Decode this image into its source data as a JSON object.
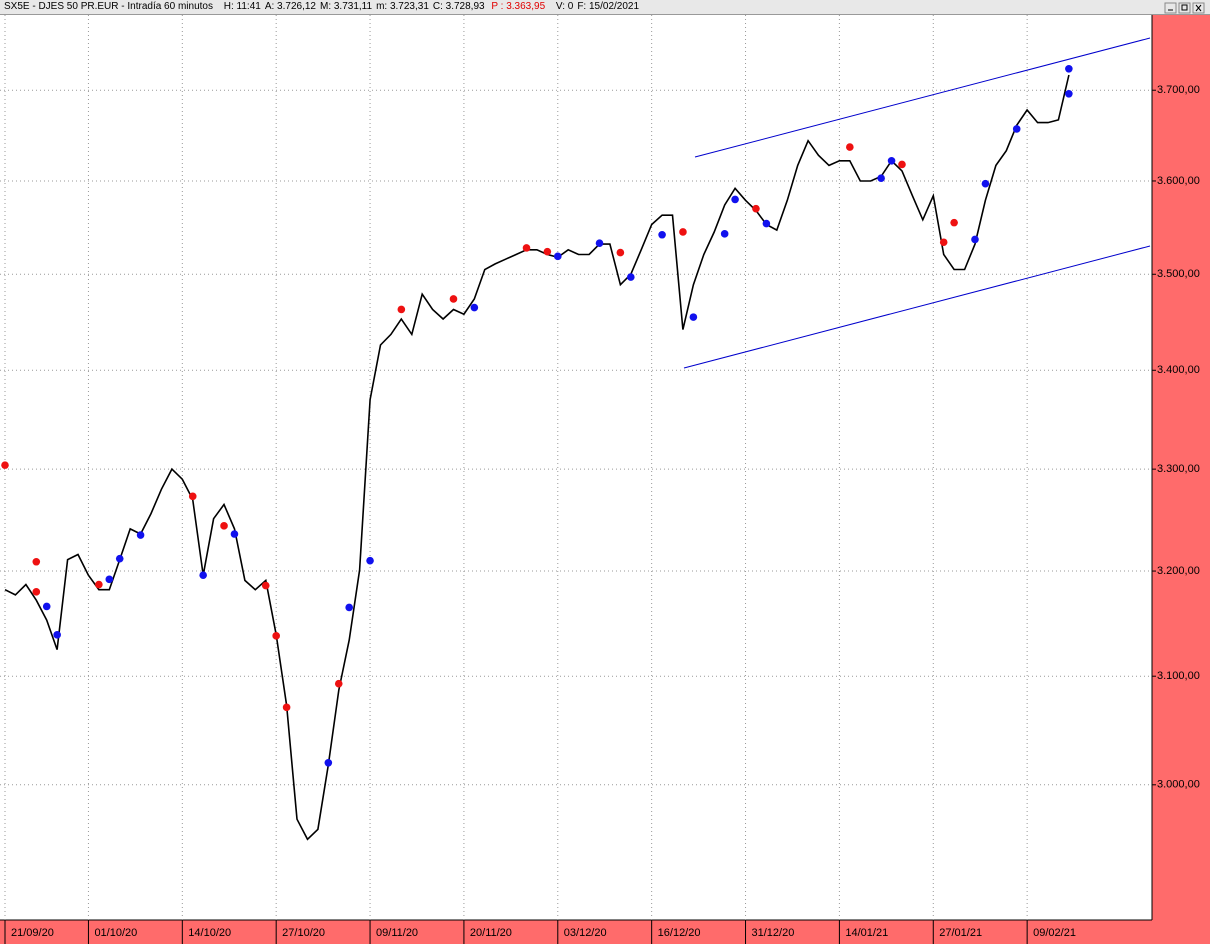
{
  "title_bar": {
    "title": "SX5E - DJES 50 PR.EUR - Intradía 60 minutos",
    "fields": [
      "H: 11:41",
      "A: 3.726,12",
      "M: 3.731,11",
      "m: 3.723,31",
      "C: 3.728,93"
    ],
    "highlight": "P : 3.363,95",
    "tail_fields": [
      "V: 0",
      "F: 15/02/2021"
    ]
  },
  "chart_data": {
    "type": "line",
    "log_scale": true,
    "grid": true,
    "x": [
      "21/09/20",
      "22/09/20",
      "23/09/20",
      "24/09/20",
      "25/09/20",
      "28/09/20",
      "29/09/20",
      "30/09/20",
      "01/10/20",
      "02/10/20",
      "05/10/20",
      "06/10/20",
      "07/10/20",
      "08/10/20",
      "09/10/20",
      "12/10/20",
      "13/10/20",
      "14/10/20",
      "15/10/20",
      "16/10/20",
      "19/10/20",
      "20/10/20",
      "21/10/20",
      "22/10/20",
      "23/10/20",
      "26/10/20",
      "27/10/20",
      "28/10/20",
      "29/10/20",
      "30/10/20",
      "02/11/20",
      "03/11/20",
      "04/11/20",
      "05/11/20",
      "06/11/20",
      "09/11/20",
      "10/11/20",
      "11/11/20",
      "12/11/20",
      "13/11/20",
      "16/11/20",
      "17/11/20",
      "18/11/20",
      "19/11/20",
      "20/11/20",
      "23/11/20",
      "24/11/20",
      "25/11/20",
      "26/11/20",
      "27/11/20",
      "30/11/20",
      "01/12/20",
      "02/12/20",
      "03/12/20",
      "04/12/20",
      "07/12/20",
      "08/12/20",
      "09/12/20",
      "10/12/20",
      "11/12/20",
      "14/12/20",
      "15/12/20",
      "16/12/20",
      "17/12/20",
      "18/12/20",
      "21/12/20",
      "22/12/20",
      "23/12/20",
      "28/12/20",
      "29/12/20",
      "30/12/20",
      "31/12/20",
      "04/01/21",
      "05/01/21",
      "06/01/21",
      "07/01/21",
      "08/01/21",
      "11/01/21",
      "12/01/21",
      "13/01/21",
      "14/01/21",
      "15/01/21",
      "18/01/21",
      "19/01/21",
      "20/01/21",
      "21/01/21",
      "22/01/21",
      "25/01/21",
      "26/01/21",
      "27/01/21",
      "28/01/21",
      "29/01/21",
      "01/02/21",
      "02/02/21",
      "03/02/21",
      "04/02/21",
      "05/02/21",
      "08/02/21",
      "09/02/21",
      "10/02/21",
      "11/02/21",
      "12/02/21",
      "15/02/21"
    ],
    "series": [
      {
        "color": "#000000",
        "values": [
          3182,
          3177,
          3187,
          3172,
          3153,
          3125,
          3211,
          3216,
          3196,
          3182,
          3182,
          3211,
          3241,
          3236,
          3256,
          3280,
          3300,
          3290,
          3270,
          3196,
          3251,
          3265,
          3241,
          3191,
          3182,
          3191,
          3139,
          3073,
          2969,
          2951,
          2960,
          3018,
          3087,
          3134,
          3201,
          3370,
          3426,
          3437,
          3453,
          3437,
          3479,
          3463,
          3453,
          3463,
          3458,
          3474,
          3505,
          3511,
          3516,
          3521,
          3526,
          3526,
          3521,
          3518,
          3526,
          3521,
          3521,
          3532,
          3532,
          3489,
          3500,
          3526,
          3553,
          3563,
          3563,
          3442,
          3489,
          3521,
          3545,
          3574,
          3592,
          3579,
          3568,
          3553,
          3547,
          3579,
          3617,
          3644,
          3628,
          3617,
          3622,
          3622,
          3600,
          3600,
          3605,
          3622,
          3611,
          3584,
          3558,
          3584,
          3521,
          3505,
          3505,
          3532,
          3579,
          3617,
          3633,
          3661,
          3678,
          3664,
          3664,
          3667,
          3717
        ]
      }
    ],
    "markers": [
      {
        "color": "#ee1111",
        "x": [
          "21/09/20",
          "24/09/20",
          "24/09/20",
          "02/10/20",
          "15/10/20",
          "20/10/20",
          "26/10/20",
          "27/10/20",
          "28/10/20",
          "04/11/20",
          "12/11/20",
          "19/11/20",
          "30/11/20",
          "02/12/20",
          "11/12/20",
          "21/12/20",
          "04/01/21",
          "15/01/21",
          "22/01/21",
          "28/01/21",
          "29/01/21"
        ],
        "values": [
          3304,
          3209,
          3180,
          3187,
          3273,
          3244,
          3186,
          3138,
          3071,
          3093,
          3463,
          3474,
          3528,
          3524,
          3523,
          3545,
          3570,
          3637,
          3618,
          3534,
          3555
        ]
      },
      {
        "color": "#1111ee",
        "x": [
          "25/09/20",
          "28/09/20",
          "05/10/20",
          "06/10/20",
          "08/10/20",
          "16/10/20",
          "21/10/20",
          "03/11/20",
          "05/11/20",
          "09/11/20",
          "23/11/20",
          "03/12/20",
          "09/12/20",
          "14/12/20",
          "17/12/20",
          "22/12/20",
          "29/12/20",
          "30/12/20",
          "05/01/21",
          "20/01/21",
          "21/01/21",
          "02/02/21",
          "03/02/21",
          "08/02/21",
          "15/02/21",
          "15/02/21"
        ],
        "values": [
          3166,
          3139,
          3192,
          3212,
          3235,
          3196,
          3236,
          3020,
          3165,
          3210,
          3465,
          3519,
          3533,
          3497,
          3542,
          3455,
          3543,
          3580,
          3554,
          3603,
          3622,
          3537,
          3597,
          3657,
          3696,
          3724
        ]
      }
    ],
    "ylim": [
      2880,
      3785
    ],
    "yticks": [
      {
        "value": 3000,
        "label": "3.000,00"
      },
      {
        "value": 3100,
        "label": "3.100,00"
      },
      {
        "value": 3200,
        "label": "3.200,00"
      },
      {
        "value": 3300,
        "label": "3.300,00"
      },
      {
        "value": 3400,
        "label": "3.400,00"
      },
      {
        "value": 3500,
        "label": "3.500,00"
      },
      {
        "value": 3600,
        "label": "3.600,00"
      },
      {
        "value": 3700,
        "label": "3.700,00"
      }
    ],
    "xticks": [
      "21/09/20",
      "01/10/20",
      "14/10/20",
      "27/10/20",
      "09/11/20",
      "20/11/20",
      "03/12/20",
      "16/12/20",
      "31/12/20",
      "14/01/21",
      "27/01/21",
      "09/02/21"
    ]
  }
}
